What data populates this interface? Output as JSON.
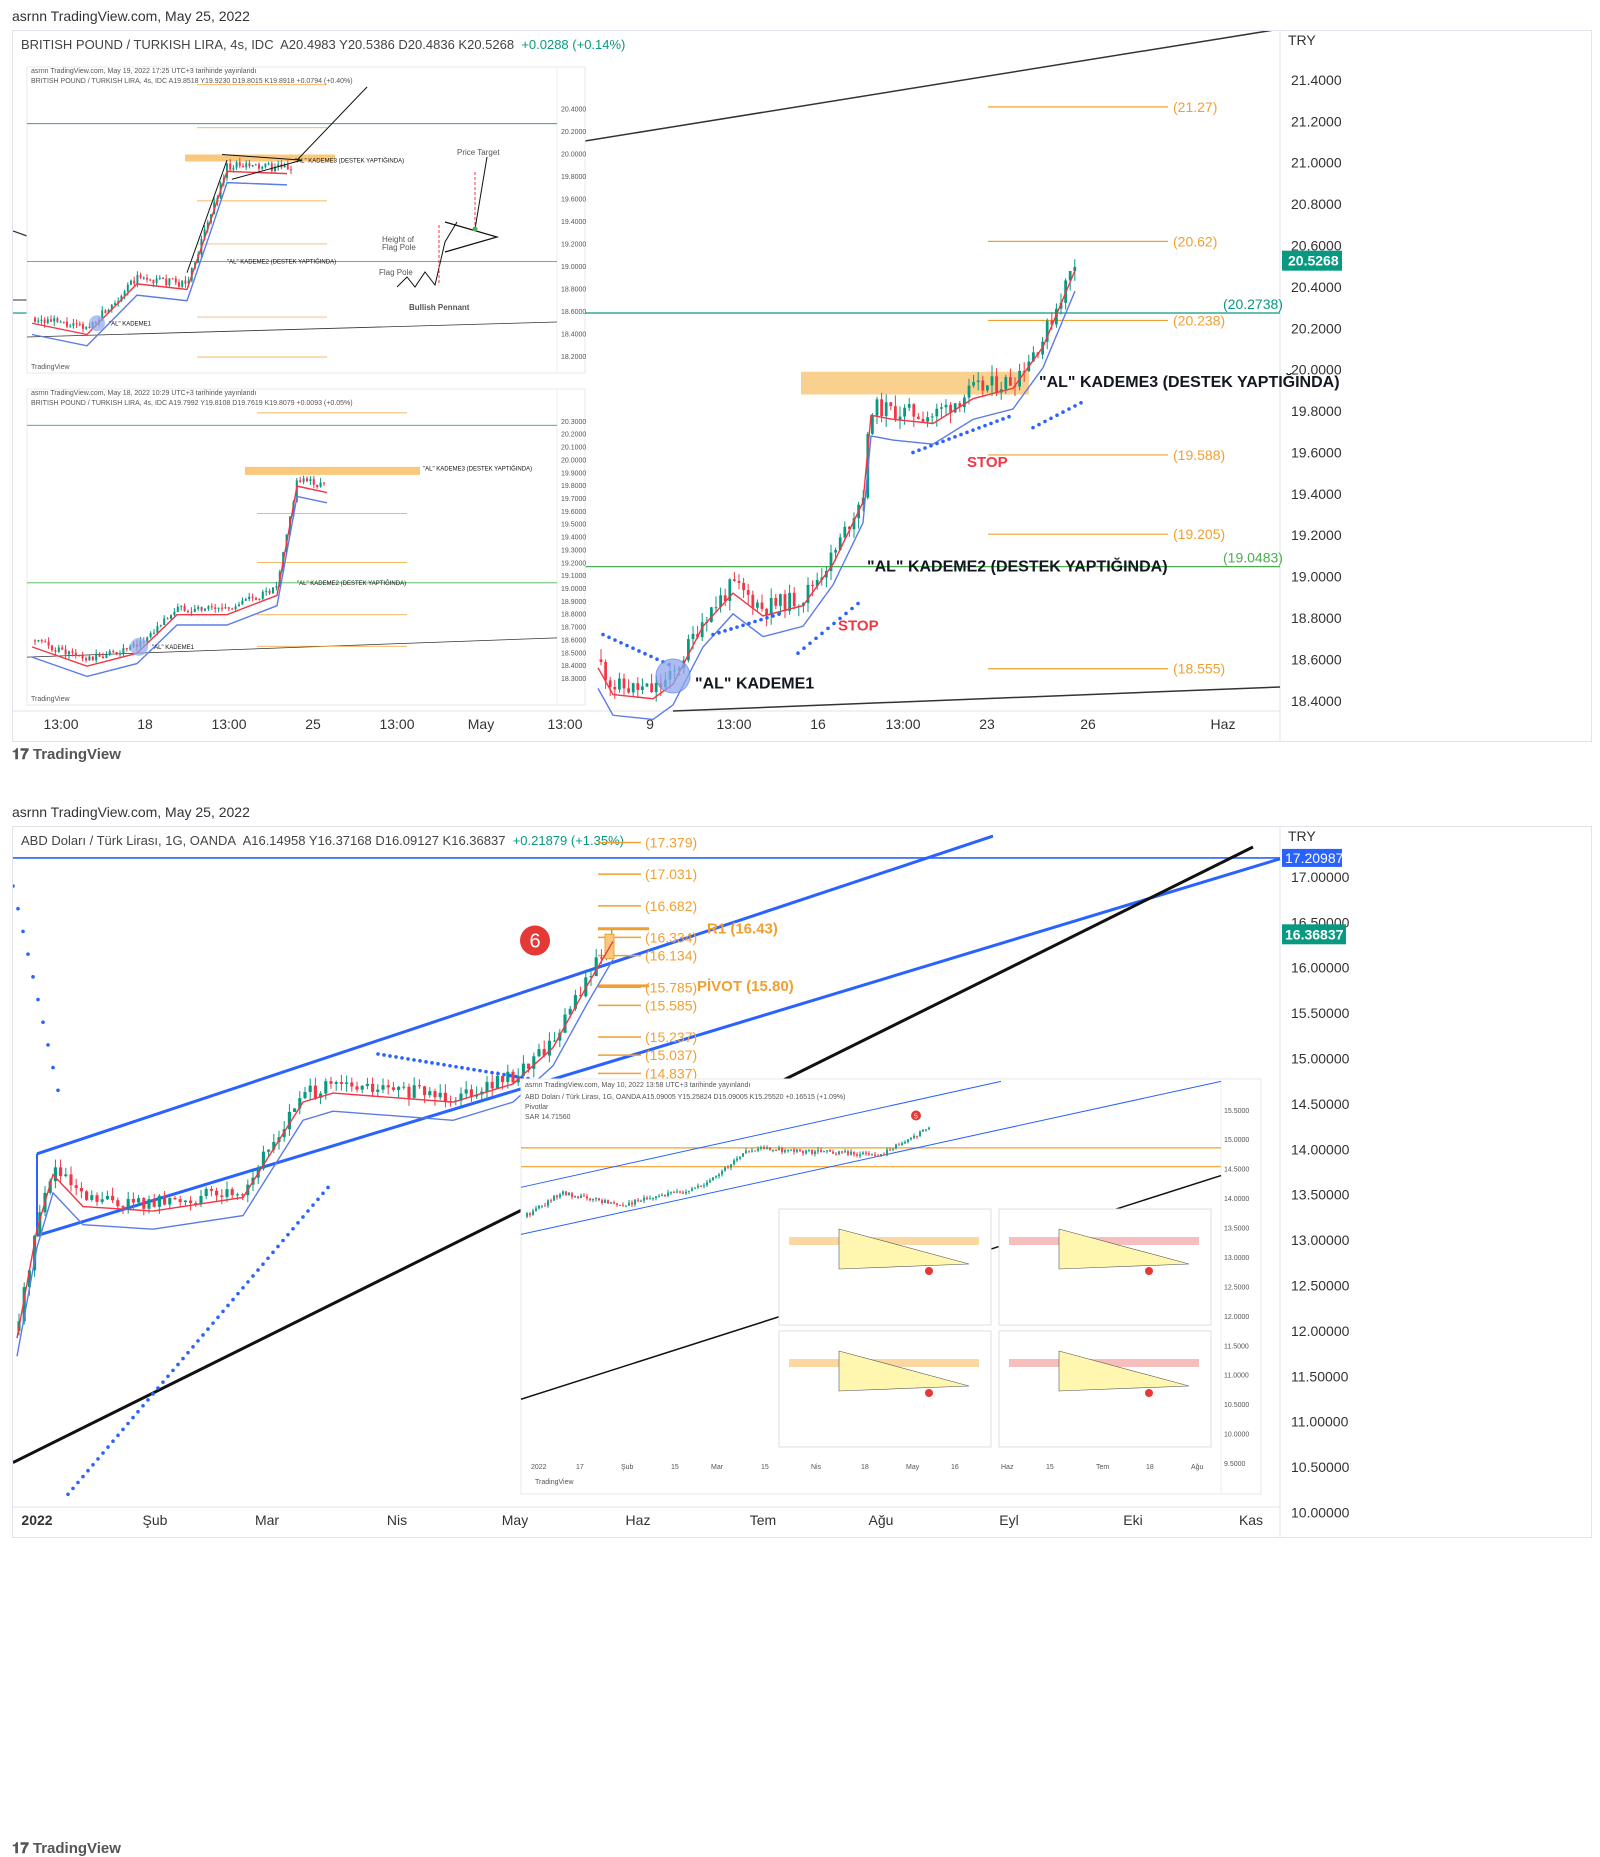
{
  "top": {
    "header": "asrnn TradingView.com, May 25, 2022",
    "ohlc_symbol": "BRITISH POUND / TURKISH LIRA, 4s, IDC",
    "ohlc_values": "A20.4983  Y20.5386  D20.4836  K20.5268",
    "ohlc_change": "+0.0288 (+0.14%)",
    "currency": "TRY",
    "price_tag": "20.5268",
    "level_tag_teal": "(20.2738)",
    "level_tag_green": "(19.0483)",
    "brand": "TradingView",
    "annotations": {
      "kademe3": "\"AL\" KADEME3 (DESTEK YAPTIĞINDA)",
      "kademe2": "\"AL\" KADEME2 (DESTEK YAPTIĞINDA)",
      "kademe1": "\"AL\" KADEME1",
      "stop": "STOP"
    },
    "inset1_header": "asrnn TradingView.com, May 19, 2022 17:25 UTC+3 tarihinde yayınlandı",
    "inset1_ohlc": "BRITISH POUND / TURKISH LIRA, 4s, IDC  A19.8518 Y19.9230 D19.8015 K19.8918 +0.0794 (+0.40%)",
    "inset2_header": "asrnn TradingView.com, May 18, 2022 10:29 UTC+3 tarihinde yayınlandı",
    "inset2_ohlc": "BRITISH POUND / TURKISH LIRA, 4s, IDC  A19.7992 Y19.8108 D19.7619 K19.8079 +0.0093 (+0.05%)",
    "pennant": {
      "price_target": "Price Target",
      "height": "Height of",
      "flag_pole": "Flag Pole",
      "flag_pole2": "Flag Pole",
      "title": "Bullish Pennant"
    },
    "inset_brand": "TradingView"
  },
  "bottom": {
    "header": "asrnn TradingView.com, May 25, 2022",
    "ohlc_symbol": "ABD Doları / Türk Lirası, 1G, OANDA",
    "ohlc_values": "A16.14958  Y16.37168  D16.09127  K16.36837",
    "ohlc_change": "+0.21879 (+1.35%)",
    "currency": "TRY",
    "price_tag": "16.36837",
    "level_tag_blue": "17.20987",
    "brand": "TradingView",
    "marker": "6",
    "r1_label": "R1 (16.43)",
    "pivot_label": "PİVOT (15.80)",
    "inset_header": "asrnn TradingView.com, May 10, 2022 13:58 UTC+3 tarihinde yayınlandı",
    "inset_ohlc": "ABD Doları / Türk Lirası, 1G, OANDA  A15.09005 Y15.25824 D15.09005 K15.25520 +0.16515 (+1.09%)",
    "inset_pivots": "Pivotlar",
    "inset_sar": "SAR  14.71560",
    "inset_x_labels": [
      "2022",
      "17",
      "Şub",
      "15",
      "Mar",
      "15",
      "Nis",
      "18",
      "May",
      "16",
      "Haz",
      "15",
      "Tem",
      "18",
      "Ağu"
    ],
    "inset_brand": "TradingView",
    "inset_marker": "5"
  },
  "chart_data": [
    {
      "type": "candlestick",
      "title": "BRITISH POUND / TURKISH LIRA, 4s, IDC",
      "x_tick_labels": [
        "13:00",
        "18",
        "13:00",
        "25",
        "13:00",
        "May",
        "13:00",
        "9",
        "13:00",
        "16",
        "13:00",
        "23",
        "26",
        "Haz"
      ],
      "y_tick_labels": [
        "21.4000",
        "21.2000",
        "21.0000",
        "20.8000",
        "20.6000",
        "20.4000",
        "20.2000",
        "20.0000",
        "19.8000",
        "19.6000",
        "19.4000",
        "19.2000",
        "19.0000",
        "18.8000",
        "18.6000",
        "18.4000"
      ],
      "ylim": [
        18.37,
        21.54
      ],
      "fib_levels": [
        {
          "value": 21.27,
          "label": "(21.27)"
        },
        {
          "value": 20.62,
          "label": "(20.62)"
        },
        {
          "value": 20.238,
          "label": "(20.238)"
        },
        {
          "value": 19.588,
          "label": "(19.588)"
        },
        {
          "value": 19.205,
          "label": "(19.205)"
        },
        {
          "value": 18.555,
          "label": "(18.555)"
        }
      ],
      "horizontal_levels": [
        20.2738,
        19.0483
      ],
      "last_price": 20.5268,
      "close_path": [
        {
          "x": "May 3",
          "y": 18.58
        },
        {
          "x": "May 5",
          "y": 18.44
        },
        {
          "x": "May 9",
          "y": 18.5
        },
        {
          "x": "May 10",
          "y": 18.62
        },
        {
          "x": "May 11",
          "y": 18.82
        },
        {
          "x": "May 12",
          "y": 18.95
        },
        {
          "x": "May 13",
          "y": 18.88
        },
        {
          "x": "May 16",
          "y": 18.9
        },
        {
          "x": "May 17",
          "y": 19.15
        },
        {
          "x": "May 18",
          "y": 19.8
        },
        {
          "x": "May 19",
          "y": 19.7
        },
        {
          "x": "May 20",
          "y": 19.82
        },
        {
          "x": "May 23",
          "y": 19.9
        },
        {
          "x": "May 24",
          "y": 20.1
        },
        {
          "x": "May 25",
          "y": 20.52
        }
      ]
    },
    {
      "type": "candlestick",
      "title": "ABD Doları / Türk Lirası, 1G, OANDA",
      "x_tick_labels": [
        "2022",
        "Şub",
        "Mar",
        "Nis",
        "May",
        "Haz",
        "Tem",
        "Ağu",
        "Eyl",
        "Eki",
        "Kas"
      ],
      "y_tick_labels": [
        "17.00000",
        "16.50000",
        "16.00000",
        "15.50000",
        "15.00000",
        "14.50000",
        "14.00000",
        "13.50000",
        "13.00000",
        "12.50000",
        "12.00000",
        "11.50000",
        "11.00000",
        "10.50000",
        "10.00000"
      ],
      "ylim": [
        9.95,
        17.33
      ],
      "fib_levels": [
        {
          "value": 17.379,
          "label": "(17.379)"
        },
        {
          "value": 17.031,
          "label": "(17.031)"
        },
        {
          "value": 16.682,
          "label": "(16.682)"
        },
        {
          "value": 16.334,
          "label": "(16.334)"
        },
        {
          "value": 16.134,
          "label": "(16.134)"
        },
        {
          "value": 15.785,
          "label": "(15.785)"
        },
        {
          "value": 15.585,
          "label": "(15.585)"
        },
        {
          "value": 15.237,
          "label": "(15.237)"
        },
        {
          "value": 15.037,
          "label": "(15.037)"
        },
        {
          "value": 14.837,
          "label": "(14.837)"
        }
      ],
      "pivots": {
        "R1": 16.43,
        "PIVOT": 15.8
      },
      "horizontal_levels": [
        17.20987
      ],
      "last_price": 16.36837,
      "close_path": [
        {
          "x": "2022-01-03",
          "y": 13.4
        },
        {
          "x": "2022-01-10",
          "y": 13.8
        },
        {
          "x": "2022-01-24",
          "y": 13.5
        },
        {
          "x": "2022-02-14",
          "y": 13.55
        },
        {
          "x": "2022-03-01",
          "y": 14.3
        },
        {
          "x": "2022-03-10",
          "y": 14.75
        },
        {
          "x": "2022-03-25",
          "y": 14.75
        },
        {
          "x": "2022-04-10",
          "y": 14.65
        },
        {
          "x": "2022-04-25",
          "y": 14.75
        },
        {
          "x": "2022-05-05",
          "y": 15.1
        },
        {
          "x": "2022-05-12",
          "y": 15.5
        },
        {
          "x": "2022-05-18",
          "y": 15.9
        },
        {
          "x": "2022-05-25",
          "y": 16.37
        }
      ]
    }
  ]
}
